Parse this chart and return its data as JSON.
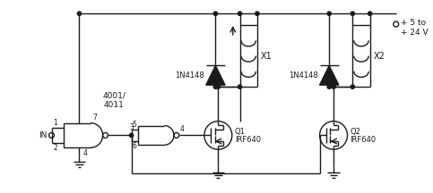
{
  "bg_color": "#ffffff",
  "line_color": "#1a1a1a",
  "line_width": 1.0,
  "fig_width": 4.83,
  "fig_height": 2.16,
  "dpi": 100,
  "labels": {
    "IN": "IN",
    "4001_4011": "4001/\n4011",
    "1N4148_1": "1N4148",
    "1N4148_2": "1N4148",
    "X1": "X1",
    "X2": "X2",
    "Q1": "Q1",
    "Q1_part": "IRF640",
    "Q2": "Q2",
    "Q2_part": "IRF640",
    "vcc": "+ 5 to\n+ 24 V",
    "pin1": "1",
    "pin2": "2",
    "pin3": "3",
    "pin4": "4",
    "pin5": "5",
    "pin6": "6",
    "pin7": "7"
  }
}
